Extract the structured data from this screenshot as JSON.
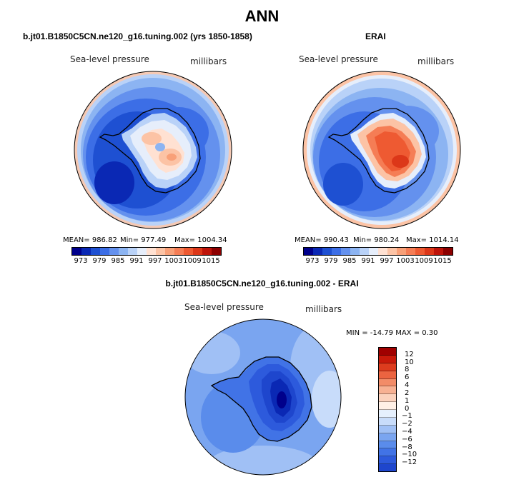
{
  "figure": {
    "title": "ANN",
    "bottom_title": "b.jt01.B1850C5CN.ne120_g16.tuning.002 - ERAI"
  },
  "panels": {
    "model": {
      "title": "b.jt01.B1850C5CN.ne120_g16.tuning.002 (yrs 1850-1858)",
      "variable": "Sea-level pressure",
      "units": "millibars",
      "mean_text": "MEAN= 986.82",
      "min_text": "Min= 977.49",
      "max_text": "Max= 1004.34"
    },
    "obs": {
      "title": "ERAI",
      "variable": "Sea-level pressure",
      "units": "millibars",
      "mean_text": "MEAN= 990.43",
      "min_text": "Min= 980.24",
      "max_text": "Max= 1014.14"
    },
    "diff": {
      "variable": "Sea-level pressure",
      "units": "millibars",
      "minmax_text": "MIN = -14.79 MAX =  0.30"
    }
  },
  "colors": {
    "slp_scale": [
      "#00008b",
      "#0a28b4",
      "#1e50d2",
      "#3c6ee6",
      "#6491ee",
      "#8cb4f2",
      "#b9d2f8",
      "#e6eefb",
      "#ffe1d2",
      "#fcc3a5",
      "#f8a078",
      "#f57d55",
      "#ee5a32",
      "#dc3719",
      "#be140a",
      "#8c0000"
    ],
    "diff_scale": [
      "#00008b",
      "#0a28b4",
      "#1e46cd",
      "#2d5adc",
      "#4173e6",
      "#5a8ceb",
      "#7aa5f0",
      "#a0c0f5",
      "#c8dcfa",
      "#e6f0fd",
      "#fff0e6",
      "#fbd2bd",
      "#f7b193",
      "#f28c68",
      "#eb6440",
      "#dd3c1e",
      "#c8190a",
      "#a00000"
    ],
    "coastline": "#000000"
  },
  "chart_data": [
    {
      "type": "heatmap",
      "projection": "south-polar-stereographic",
      "title": "b.jt01.B1850C5CN.ne120_g16.tuning.002 (yrs 1850-1858)",
      "variable": "Sea-level pressure",
      "units": "millibars",
      "mean": 986.82,
      "min": 977.49,
      "max": 1004.34,
      "contour_levels": [
        973,
        976,
        979,
        982,
        985,
        988,
        991,
        994,
        997,
        1000,
        1003,
        1006,
        1009,
        1012,
        1015
      ],
      "colorbar_labels": [
        "973",
        "979",
        "985",
        "991",
        "997",
        "1003",
        "1009",
        "1015"
      ]
    },
    {
      "type": "heatmap",
      "projection": "south-polar-stereographic",
      "title": "ERAI",
      "variable": "Sea-level pressure",
      "units": "millibars",
      "mean": 990.43,
      "min": 980.24,
      "max": 1014.14,
      "contour_levels": [
        973,
        976,
        979,
        982,
        985,
        988,
        991,
        994,
        997,
        1000,
        1003,
        1006,
        1009,
        1012,
        1015
      ],
      "colorbar_labels": [
        "973",
        "979",
        "985",
        "991",
        "997",
        "1003",
        "1009",
        "1015"
      ]
    },
    {
      "type": "heatmap",
      "projection": "south-polar-stereographic",
      "title": "b.jt01.B1850C5CN.ne120_g16.tuning.002 - ERAI",
      "variable": "Sea-level pressure",
      "units": "millibars",
      "min": -14.79,
      "max": 0.3,
      "contour_levels": [
        -12,
        -10,
        -8,
        -6,
        -4,
        -2,
        -1,
        0,
        1,
        2,
        4,
        6,
        8,
        10,
        12
      ],
      "colorbar_labels": [
        "12",
        "10",
        "8",
        "6",
        "4",
        "2",
        "1",
        "0",
        "−1",
        "−2",
        "−4",
        "−6",
        "−8",
        "−10",
        "−12"
      ]
    }
  ]
}
